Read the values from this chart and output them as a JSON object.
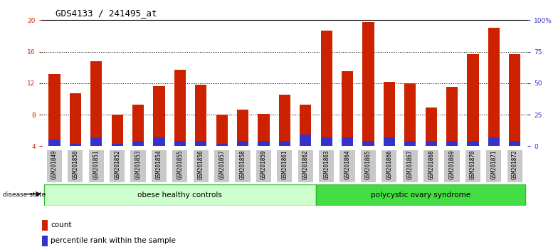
{
  "title": "GDS4133 / 241495_at",
  "samples": [
    "GSM201849",
    "GSM201850",
    "GSM201851",
    "GSM201852",
    "GSM201853",
    "GSM201854",
    "GSM201855",
    "GSM201856",
    "GSM201857",
    "GSM201858",
    "GSM201859",
    "GSM201861",
    "GSM201862",
    "GSM201863",
    "GSM201864",
    "GSM201865",
    "GSM201866",
    "GSM201867",
    "GSM201868",
    "GSM201869",
    "GSM201870",
    "GSM201871",
    "GSM201872"
  ],
  "count_values": [
    13.2,
    10.7,
    14.8,
    8.0,
    9.3,
    11.6,
    13.7,
    11.8,
    8.0,
    8.6,
    8.1,
    10.5,
    9.3,
    18.7,
    13.5,
    19.8,
    12.2,
    12.0,
    8.9,
    11.5,
    15.7,
    19.0,
    15.7
  ],
  "percentile_values": [
    5.0,
    2.0,
    7.0,
    2.0,
    4.0,
    7.0,
    4.0,
    4.0,
    2.0,
    4.0,
    4.0,
    4.0,
    9.0,
    7.0,
    7.0,
    4.0,
    7.0,
    4.0,
    4.0,
    4.0,
    4.0,
    7.0,
    4.0
  ],
  "count_color": "#cc2200",
  "percentile_color": "#3333cc",
  "bar_width": 0.55,
  "ylim_left": [
    4,
    20
  ],
  "ylim_right": [
    0,
    100
  ],
  "yticks_left": [
    4,
    8,
    12,
    16,
    20
  ],
  "yticks_right": [
    0,
    25,
    50,
    75,
    100
  ],
  "ytick_labels_left": [
    "4",
    "8",
    "12",
    "16",
    "20"
  ],
  "ytick_labels_right": [
    "0",
    "25",
    "50",
    "75",
    "100%"
  ],
  "group1_label": "obese healthy controls",
  "group2_label": "polycystic ovary syndrome",
  "group1_count": 13,
  "group2_count": 10,
  "disease_state_label": "disease state",
  "legend_count_label": "count",
  "legend_percentile_label": "percentile rank within the sample",
  "background_color": "#ffffff",
  "plot_bg_color": "#ffffff",
  "tick_bg_color": "#c8c8c8",
  "group1_bg": "#ccffcc",
  "group2_bg": "#44dd44",
  "title_fontsize": 9,
  "tick_fontsize": 6.5
}
